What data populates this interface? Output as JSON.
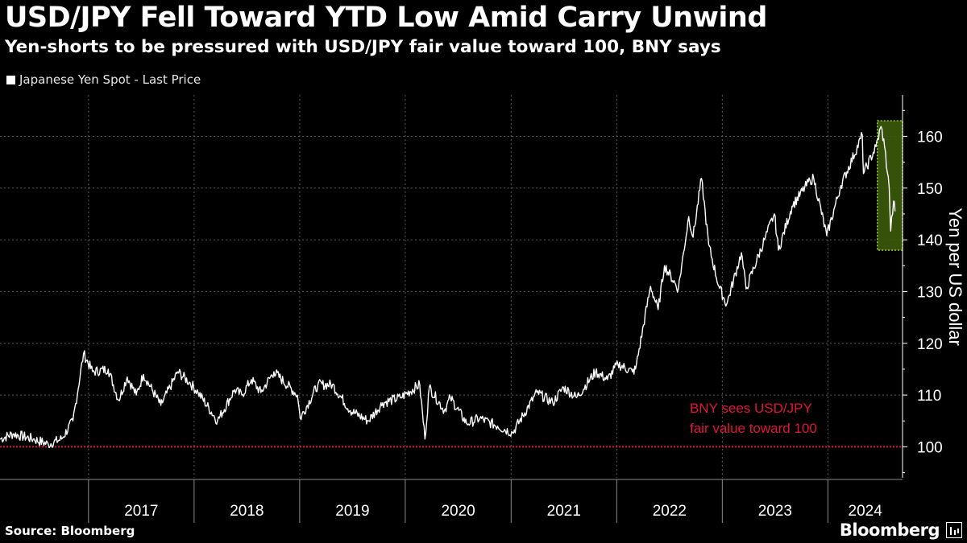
{
  "header": {
    "title": "USD/JPY Fell Toward YTD Low Amid Carry Unwind",
    "subtitle": "Yen-shorts to be pressured with USD/JPY fair value toward 100, BNY says"
  },
  "footer": {
    "source": "Source: Bloomberg",
    "brand": "Bloomberg"
  },
  "colors": {
    "background": "#000000",
    "series": "#ffffff",
    "grid": "#5a5a5a",
    "reference_line": "#e0143c",
    "highlight_fill": "#3c5a0a",
    "highlight_border": "#9acd32"
  },
  "chart_data": {
    "type": "line",
    "legend_placement": "top-left",
    "grid": true,
    "ylabel": "Yen per US dollar",
    "ylim": [
      94,
      168
    ],
    "yticks": [
      100,
      110,
      120,
      130,
      140,
      150,
      160
    ],
    "xlim": [
      "2016-03-01",
      "2024-09-15"
    ],
    "xticks": [
      "2017",
      "2018",
      "2019",
      "2020",
      "2021",
      "2022",
      "2023",
      "2024"
    ],
    "series": [
      {
        "name": "Japanese Yen Spot - Last Price",
        "points": [
          [
            "2016-03-01",
            101.5
          ],
          [
            "2016-04-15",
            102.5
          ],
          [
            "2016-06-24",
            101.5
          ],
          [
            "2016-08-15",
            100.5
          ],
          [
            "2016-09-30",
            101.5
          ],
          [
            "2016-11-08",
            105.0
          ],
          [
            "2016-12-15",
            118.0
          ],
          [
            "2017-01-15",
            114.5
          ],
          [
            "2017-03-10",
            115.0
          ],
          [
            "2017-04-15",
            109.0
          ],
          [
            "2017-05-15",
            113.5
          ],
          [
            "2017-06-15",
            110.0
          ],
          [
            "2017-07-10",
            114.0
          ],
          [
            "2017-09-08",
            108.0
          ],
          [
            "2017-11-06",
            114.5
          ],
          [
            "2017-12-15",
            112.5
          ],
          [
            "2018-01-15",
            110.5
          ],
          [
            "2018-03-23",
            105.0
          ],
          [
            "2018-05-21",
            111.0
          ],
          [
            "2018-06-15",
            110.0
          ],
          [
            "2018-07-18",
            113.0
          ],
          [
            "2018-08-20",
            110.5
          ],
          [
            "2018-10-04",
            114.5
          ],
          [
            "2018-12-24",
            110.0
          ],
          [
            "2019-01-03",
            105.5
          ],
          [
            "2019-03-05",
            112.0
          ],
          [
            "2019-04-24",
            112.0
          ],
          [
            "2019-06-25",
            107.0
          ],
          [
            "2019-08-26",
            105.0
          ],
          [
            "2019-10-15",
            108.5
          ],
          [
            "2019-12-15",
            109.5
          ],
          [
            "2020-02-20",
            112.0
          ],
          [
            "2020-03-09",
            101.5
          ],
          [
            "2020-03-24",
            111.5
          ],
          [
            "2020-05-15",
            107.0
          ],
          [
            "2020-06-05",
            109.5
          ],
          [
            "2020-07-31",
            104.5
          ],
          [
            "2020-09-15",
            105.5
          ],
          [
            "2020-11-15",
            104.0
          ],
          [
            "2021-01-06",
            102.7
          ],
          [
            "2021-03-31",
            110.5
          ],
          [
            "2021-05-25",
            108.5
          ],
          [
            "2021-07-01",
            111.5
          ],
          [
            "2021-08-15",
            109.5
          ],
          [
            "2021-10-20",
            114.5
          ],
          [
            "2021-11-30",
            113.0
          ],
          [
            "2022-01-05",
            116.0
          ],
          [
            "2022-02-24",
            114.5
          ],
          [
            "2022-03-07",
            115.0
          ],
          [
            "2022-04-28",
            131.0
          ],
          [
            "2022-05-24",
            126.5
          ],
          [
            "2022-06-15",
            135.0
          ],
          [
            "2022-08-02",
            130.5
          ],
          [
            "2022-09-07",
            144.5
          ],
          [
            "2022-09-22",
            140.5
          ],
          [
            "2022-10-21",
            151.9
          ],
          [
            "2022-11-15",
            139.0
          ],
          [
            "2022-12-20",
            131.0
          ],
          [
            "2023-01-16",
            127.5
          ],
          [
            "2023-03-08",
            137.5
          ],
          [
            "2023-03-24",
            130.5
          ],
          [
            "2023-05-30",
            140.5
          ],
          [
            "2023-06-30",
            145.0
          ],
          [
            "2023-07-14",
            138.0
          ],
          [
            "2023-08-30",
            146.5
          ],
          [
            "2023-10-31",
            151.5
          ],
          [
            "2023-11-13",
            151.9
          ],
          [
            "2023-12-28",
            140.8
          ],
          [
            "2024-02-15",
            150.5
          ],
          [
            "2024-04-29",
            160.2
          ],
          [
            "2024-05-03",
            152.8
          ],
          [
            "2024-06-15",
            158.0
          ],
          [
            "2024-07-03",
            161.9
          ],
          [
            "2024-07-15",
            158.0
          ],
          [
            "2024-07-31",
            150.0
          ],
          [
            "2024-08-05",
            141.7
          ],
          [
            "2024-08-15",
            147.5
          ],
          [
            "2024-08-20",
            145.5
          ]
        ]
      }
    ],
    "reference_line": {
      "value": 100
    },
    "annotations": [
      {
        "text_lines": [
          "BNY sees USD/JPY",
          "fair value toward 100"
        ]
      }
    ],
    "highlight": {
      "x": [
        "2024-06-20",
        "2024-09-15"
      ],
      "y": [
        138,
        163
      ]
    }
  }
}
